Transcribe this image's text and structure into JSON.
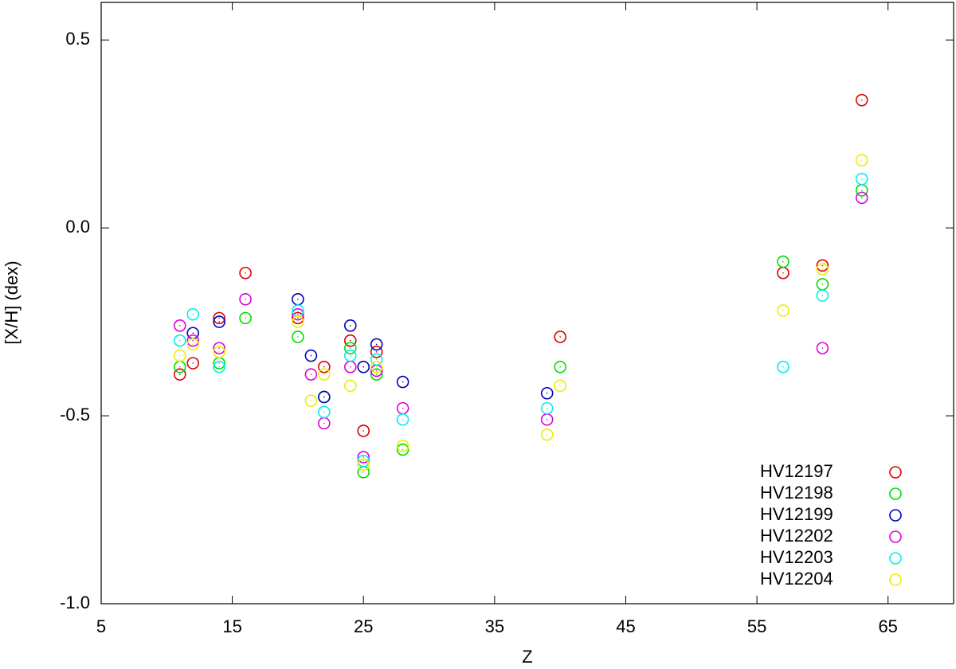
{
  "chart_data": {
    "type": "scatter",
    "x_label": "Z",
    "y_label": "[X/H] (dex)",
    "xlim": [
      5,
      70
    ],
    "ylim": [
      -1,
      0.6
    ],
    "xticks": [
      5,
      15,
      25,
      35,
      45,
      55,
      65
    ],
    "yticks": [
      {
        "value": -1,
        "label": "-1.0"
      },
      -0.5,
      {
        "value": 0,
        "label": "0.0"
      },
      0.5
    ],
    "legend": "lower right",
    "series": [
      {
        "name": "HV12197",
        "color": "#dd0000",
        "x": [
          11,
          12,
          14,
          16,
          20,
          22,
          24,
          25,
          26,
          40,
          57,
          60,
          63
        ],
        "values": [
          -0.39,
          -0.36,
          -0.24,
          -0.12,
          -0.24,
          -0.37,
          -0.3,
          -0.54,
          -0.33,
          -0.29,
          -0.12,
          -0.1,
          0.34
        ]
      },
      {
        "name": "HV12198",
        "color": "#00dd00",
        "x": [
          11,
          14,
          16,
          20,
          22,
          24,
          25,
          26,
          28,
          40,
          57,
          60,
          63
        ],
        "values": [
          -0.37,
          -0.36,
          -0.24,
          -0.29,
          -0.45,
          -0.32,
          -0.65,
          -0.39,
          -0.59,
          -0.37,
          -0.09,
          -0.15,
          0.1
        ]
      },
      {
        "name": "HV12199",
        "color": "#0000bb",
        "x": [
          12,
          14,
          20,
          21,
          22,
          24,
          25,
          26,
          28,
          39
        ],
        "values": [
          -0.28,
          -0.25,
          -0.19,
          -0.34,
          -0.45,
          -0.26,
          -0.37,
          -0.31,
          -0.41,
          -0.44
        ]
      },
      {
        "name": "HV12202",
        "color": "#dd00dd",
        "x": [
          11,
          12,
          14,
          16,
          20,
          21,
          22,
          24,
          25,
          26,
          28,
          39,
          60,
          63
        ],
        "values": [
          -0.26,
          -0.3,
          -0.32,
          -0.19,
          -0.23,
          -0.39,
          -0.52,
          -0.37,
          -0.61,
          -0.38,
          -0.48,
          -0.51,
          -0.32,
          0.08
        ]
      },
      {
        "name": "HV12203",
        "color": "#00eeee",
        "x": [
          11,
          12,
          14,
          20,
          22,
          24,
          25,
          26,
          28,
          39,
          57,
          60,
          63
        ],
        "values": [
          -0.3,
          -0.23,
          -0.37,
          -0.22,
          -0.49,
          -0.34,
          -0.62,
          -0.35,
          -0.51,
          -0.48,
          -0.37,
          -0.18,
          0.13
        ]
      },
      {
        "name": "HV12204",
        "color": "#eeee00",
        "x": [
          11,
          12,
          14,
          20,
          21,
          22,
          24,
          25,
          26,
          28,
          39,
          40,
          57,
          60,
          63
        ],
        "values": [
          -0.34,
          -0.31,
          -0.33,
          -0.25,
          -0.46,
          -0.39,
          -0.42,
          -0.63,
          -0.37,
          -0.58,
          -0.55,
          -0.42,
          -0.22,
          -0.11,
          0.18
        ]
      }
    ]
  }
}
